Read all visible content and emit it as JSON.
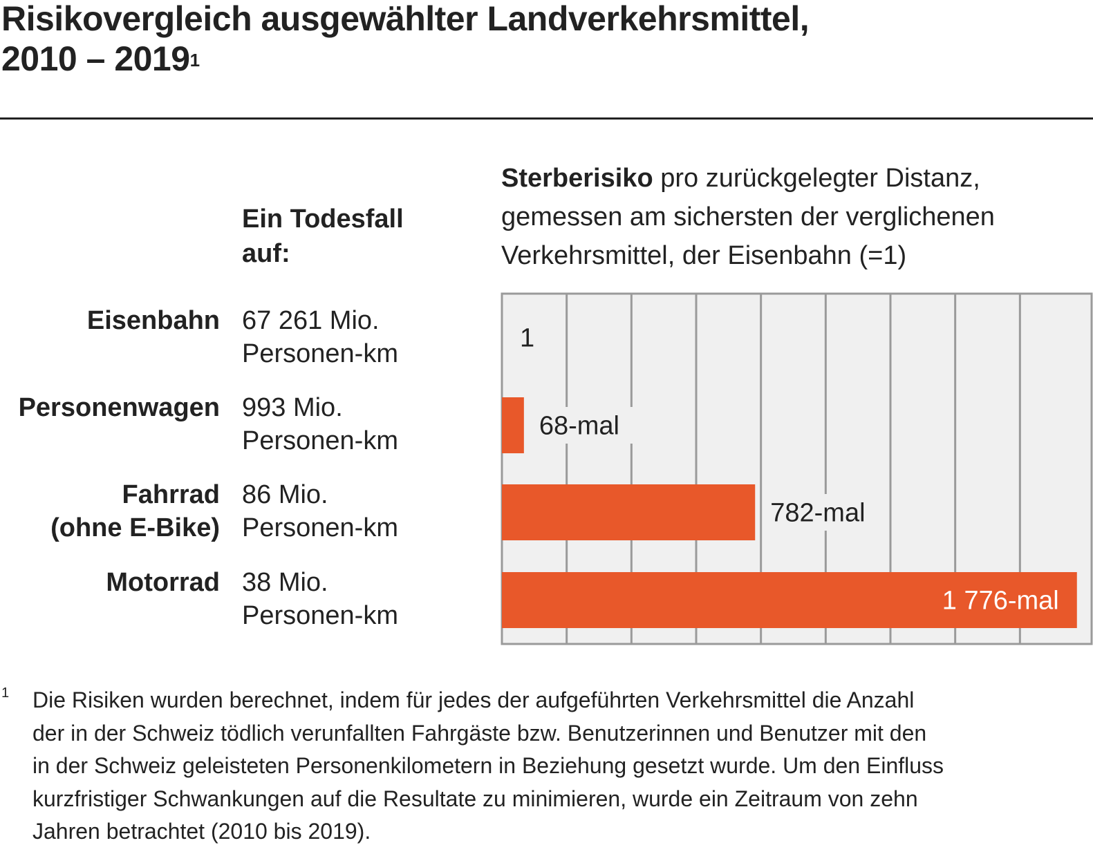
{
  "title": {
    "line1": "Risikovergleich ausgewählter Landverkehrsmittel,",
    "line2": "2010 – 2019",
    "footnote_mark": "1"
  },
  "column_header": {
    "line1": "Ein Todesfall",
    "line2": "auf:"
  },
  "chart_header": {
    "bold": "Sterberisiko",
    "rest_line1": " pro zurückgelegter Distanz,",
    "line2": "gemessen am sichersten der verglichenen",
    "line3": "Verkehrsmittel, der Eisenbahn (=1)"
  },
  "rows": [
    {
      "category": [
        "Eisenbahn"
      ],
      "distance": [
        "67 261 Mio.",
        "Personen-km"
      ]
    },
    {
      "category": [
        "Personenwagen"
      ],
      "distance": [
        "993 Mio.",
        "Personen-km"
      ]
    },
    {
      "category": [
        "Fahrrad",
        "(ohne E-Bike)"
      ],
      "distance": [
        "86 Mio.",
        "Personen-km"
      ]
    },
    {
      "category": [
        "Motorrad"
      ],
      "distance": [
        "38 Mio.",
        "Personen-km"
      ]
    }
  ],
  "chart_data": {
    "type": "bar",
    "orientation": "horizontal",
    "categories": [
      "Eisenbahn",
      "Personenwagen",
      "Fahrrad (ohne E-Bike)",
      "Motorrad"
    ],
    "values": [
      1,
      68,
      782,
      1776
    ],
    "data_labels": [
      "1",
      "68-mal",
      "782-mal",
      "1 776-mal"
    ],
    "xlim": [
      0,
      1800
    ],
    "grid_step": 200,
    "grid": true,
    "bar_color": "#e8582a",
    "background_color": "#f0f0f0",
    "grid_color": "#9a9a9a"
  },
  "footnote": {
    "mark": "1",
    "lines": [
      "Die Risiken wurden berechnet, indem für jedes der aufgeführten Verkehrsmittel die Anzahl",
      "der in der Schweiz tödlich verunfallten Fahrgäste bzw. Benutzerinnen und Benutzer mit den",
      "in der Schweiz geleisteten Personenkilometern in Beziehung gesetzt wurde. Um den Einfluss",
      "kurzfristiger Schwankungen auf die Resultate zu minimieren, wurde ein Zeitraum von zehn",
      "Jahren betrachtet (2010 bis 2019)."
    ]
  }
}
